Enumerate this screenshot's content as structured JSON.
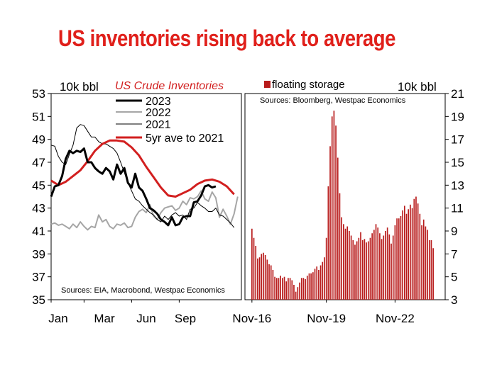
{
  "title": "US inventories rising back to average",
  "chart_data": [
    {
      "type": "line",
      "title": "US Crude Inventories",
      "ylabel": "10k bbl",
      "ylim": [
        35,
        53
      ],
      "yticks": [
        "35",
        "37",
        "39",
        "41",
        "43",
        "45",
        "47",
        "49",
        "51",
        "53"
      ],
      "xticks": [
        "Jan",
        "Mar",
        "Jun",
        "Sep"
      ],
      "x_unit": "week of year",
      "xlim": [
        1,
        53
      ],
      "legend_placement": "top",
      "source": "Sources: EIA, Macrobond, Westpac Economics",
      "colors": {
        "2023": "#000000",
        "2022": "#a6a6a6",
        "2021": "#000000",
        "5yr": "#d21f1f"
      },
      "series": [
        {
          "name": "2023",
          "x": [
            1,
            2,
            3,
            4,
            5,
            6,
            7,
            8,
            9,
            10,
            11,
            12,
            13,
            14,
            15,
            16,
            17,
            18,
            19,
            20,
            21,
            22,
            23,
            24,
            25,
            26,
            27,
            28,
            29,
            30,
            31,
            32,
            33,
            34,
            35,
            36,
            37,
            38,
            39,
            40,
            41,
            42,
            43,
            44,
            45,
            46
          ],
          "values": [
            44.0,
            44.9,
            45.0,
            45.8,
            47.3,
            48.0,
            47.8,
            48.0,
            47.9,
            48.2,
            47.0,
            47.0,
            46.5,
            46.2,
            46.0,
            46.5,
            46.2,
            45.5,
            46.8,
            46.0,
            46.5,
            45.2,
            44.8,
            46.0,
            44.8,
            44.5,
            43.8,
            43.0,
            42.8,
            42.5,
            42.0,
            41.8,
            41.5,
            42.2,
            41.5,
            41.6,
            42.2,
            42.3,
            42.3,
            43.5,
            43.6,
            44.1,
            44.9,
            45.0,
            44.8,
            44.9
          ]
        },
        {
          "name": "2022",
          "x": [
            1,
            2,
            3,
            4,
            5,
            6,
            7,
            8,
            9,
            10,
            11,
            12,
            13,
            14,
            15,
            16,
            17,
            18,
            19,
            20,
            21,
            22,
            23,
            24,
            25,
            26,
            27,
            28,
            29,
            30,
            31,
            32,
            33,
            34,
            35,
            36,
            37,
            38,
            39,
            40,
            41,
            42,
            43,
            44,
            45,
            46,
            47,
            48,
            49,
            50,
            51,
            52
          ],
          "values": [
            41.6,
            41.7,
            41.5,
            41.6,
            41.4,
            41.2,
            41.6,
            41.3,
            41.8,
            41.4,
            41.1,
            41.4,
            41.3,
            42.4,
            41.8,
            42.0,
            41.4,
            41.2,
            41.6,
            41.5,
            41.7,
            41.3,
            41.4,
            42.2,
            42.7,
            42.9,
            42.6,
            43.3,
            42.3,
            42.0,
            42.6,
            43.0,
            43.1,
            43.2,
            42.8,
            43.0,
            43.6,
            43.3,
            43.9,
            43.8,
            44.0,
            44.5,
            43.8,
            43.6,
            44.4,
            43.9,
            42.2,
            42.9,
            42.3,
            41.6,
            42.5,
            44.0
          ]
        },
        {
          "name": "2021",
          "x": [
            1,
            2,
            3,
            4,
            5,
            6,
            7,
            8,
            9,
            10,
            11,
            12,
            13,
            14,
            15,
            16,
            17,
            18,
            19,
            20,
            21,
            22,
            23,
            24,
            25,
            26,
            27,
            28,
            29,
            30,
            31,
            32,
            33,
            34,
            35,
            36,
            37,
            38,
            39,
            40,
            41,
            42,
            43,
            44,
            45,
            46,
            47,
            48,
            49,
            50,
            51
          ],
          "values": [
            48.5,
            48.4,
            47.5,
            47.0,
            46.8,
            47.7,
            48.5,
            50.0,
            50.3,
            50.2,
            49.7,
            49.2,
            49.2,
            48.8,
            48.6,
            48.6,
            48.4,
            48.2,
            47.8,
            47.0,
            46.1,
            45.2,
            44.5,
            43.8,
            43.6,
            43.2,
            42.9,
            42.6,
            42.4,
            42.0,
            41.8,
            42.3,
            42.0,
            42.4,
            42.6,
            42.3,
            42.4,
            42.0,
            42.9,
            43.0,
            43.5,
            43.2,
            43.0,
            42.7,
            42.7,
            43.0,
            42.4,
            42.3,
            42.0,
            41.7,
            41.3
          ]
        },
        {
          "name": "5yr ave to 2021",
          "x": [
            1,
            3,
            5,
            7,
            9,
            11,
            13,
            15,
            17,
            19,
            21,
            23,
            25,
            27,
            29,
            31,
            33,
            35,
            37,
            39,
            41,
            43,
            45,
            47,
            49,
            51
          ],
          "values": [
            45.4,
            45.0,
            45.3,
            45.8,
            46.3,
            47.1,
            48.0,
            48.6,
            48.9,
            48.9,
            48.8,
            48.3,
            47.6,
            46.6,
            45.7,
            44.8,
            44.1,
            44.0,
            44.3,
            44.6,
            45.1,
            45.4,
            45.5,
            45.3,
            44.9,
            44.2
          ]
        }
      ]
    },
    {
      "type": "bar",
      "title": "",
      "ylabel": "10k bbl",
      "ylim": [
        3,
        21
      ],
      "yticks": [
        "3",
        "5",
        "7",
        "9",
        "11",
        "13",
        "15",
        "17",
        "19",
        "21"
      ],
      "xticks": [
        "Nov-16",
        "Nov-19",
        "Nov-22"
      ],
      "legend_placement": "top-left",
      "source": "Sources: Bloomberg, Westpac Economics",
      "color": "#b81c1c",
      "series": [
        {
          "name": "floating storage",
          "values": [
            9.2,
            8.4,
            7.7,
            6.6,
            6.7,
            7.0,
            7.1,
            6.9,
            6.5,
            6.1,
            6.0,
            5.6,
            5.0,
            4.9,
            4.9,
            5.1,
            4.9,
            5.0,
            4.6,
            4.9,
            4.9,
            4.7,
            4.3,
            3.7,
            4.1,
            4.5,
            4.9,
            4.9,
            4.8,
            5.1,
            5.3,
            5.3,
            5.4,
            5.7,
            5.9,
            5.6,
            6.0,
            6.3,
            6.7,
            8.4,
            12.9,
            16.4,
            19.0,
            19.5,
            18.2,
            15.4,
            12.3,
            10.2,
            9.6,
            9.2,
            9.4,
            9.0,
            8.6,
            8.2,
            7.8,
            8.1,
            8.4,
            8.9,
            8.2,
            8.3,
            8.0,
            8.1,
            8.4,
            8.8,
            9.1,
            9.6,
            9.3,
            8.8,
            8.3,
            8.6,
            9.0,
            9.3,
            8.7,
            7.9,
            8.6,
            9.5,
            10.1,
            10.1,
            10.3,
            10.8,
            11.2,
            10.5,
            10.9,
            11.3,
            11.0,
            11.8,
            12.0,
            11.4,
            10.5,
            9.5,
            10.0,
            9.4,
            9.1,
            8.2,
            8.2,
            7.5
          ]
        }
      ]
    }
  ]
}
